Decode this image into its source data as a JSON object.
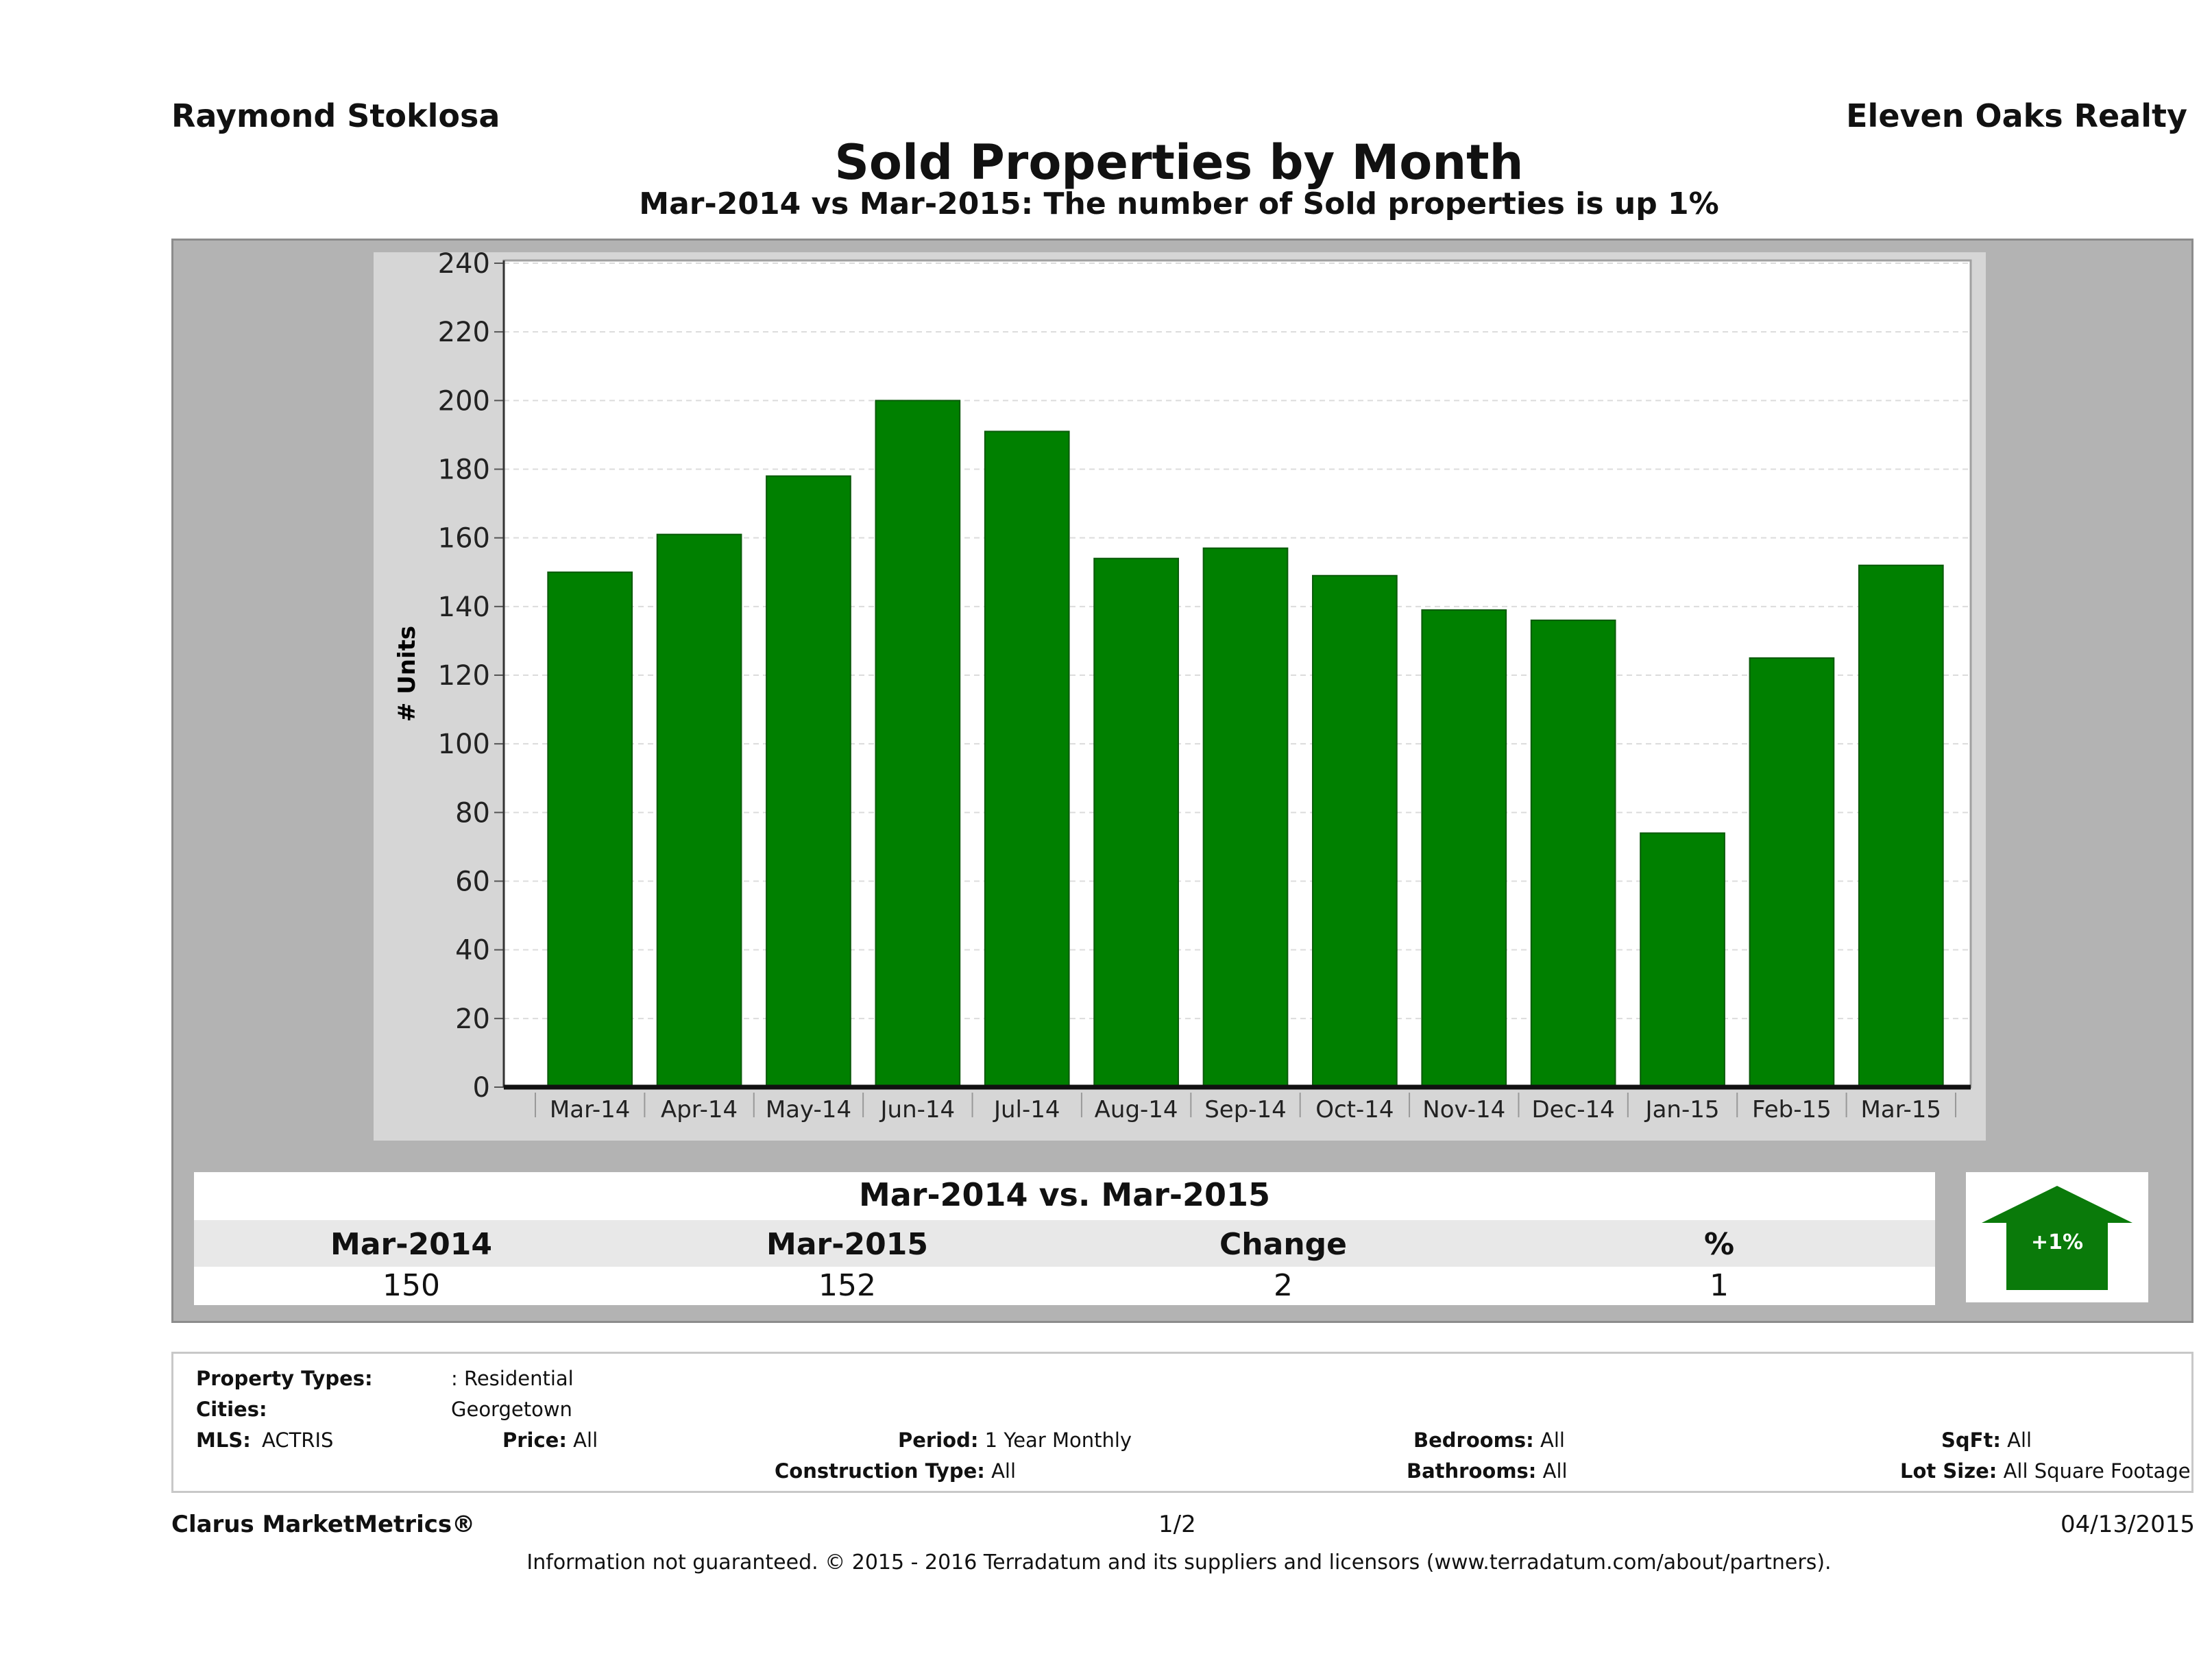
{
  "header": {
    "agent": "Raymond Stoklosa",
    "company": "Eleven Oaks Realty",
    "title": "Sold Properties by Month",
    "subtitle": "Mar-2014 vs Mar-2015: The number of Sold  properties is up 1%"
  },
  "chart_data": {
    "type": "bar",
    "categories": [
      "Mar-14",
      "Apr-14",
      "May-14",
      "Jun-14",
      "Jul-14",
      "Aug-14",
      "Sep-14",
      "Oct-14",
      "Nov-14",
      "Dec-14",
      "Jan-15",
      "Feb-15",
      "Mar-15"
    ],
    "values": [
      150,
      161,
      178,
      200,
      191,
      154,
      157,
      149,
      139,
      136,
      74,
      125,
      152
    ],
    "title": "Sold Properties by Month",
    "xlabel": "",
    "ylabel": "# Units",
    "ylim": [
      0,
      240
    ],
    "yticks": [
      "0",
      "20",
      "40",
      "60",
      "80",
      "100",
      "120",
      "140",
      "160",
      "180",
      "200",
      "220",
      "240"
    ],
    "bar_color": "#008000",
    "grid": true
  },
  "summary": {
    "title": "Mar-2014 vs. Mar-2015",
    "headers": [
      "Mar-2014",
      "Mar-2015",
      "Change",
      "%"
    ],
    "values": [
      "150",
      "152",
      "2",
      "1"
    ],
    "badge": "+1%",
    "badge_color": "#0a7a0a"
  },
  "info": {
    "property_types_label": "Property Types:",
    "property_types_value": ": Residential",
    "cities_label": "Cities:",
    "cities_value": "Georgetown",
    "mls_label": "MLS:",
    "mls_value": "ACTRIS",
    "price_label": "Price:",
    "price_value": "All",
    "period_label": "Period:",
    "period_value": "1 Year Monthly",
    "bedrooms_label": "Bedrooms:",
    "bedrooms_value": "All",
    "sqft_label": "SqFt:",
    "sqft_value": "All",
    "construction_label": "Construction Type:",
    "construction_value": "All",
    "bathrooms_label": "Bathrooms:",
    "bathrooms_value": "All",
    "lotsize_label": "Lot Size:",
    "lotsize_value": "All Square Footage"
  },
  "footer": {
    "brand": "Clarus MarketMetrics®",
    "page": "1/2",
    "date": "04/13/2015",
    "disclaimer": "Information not guaranteed. © 2015 - 2016 Terradatum and its suppliers and licensors (www.terradatum.com/about/partners)."
  }
}
